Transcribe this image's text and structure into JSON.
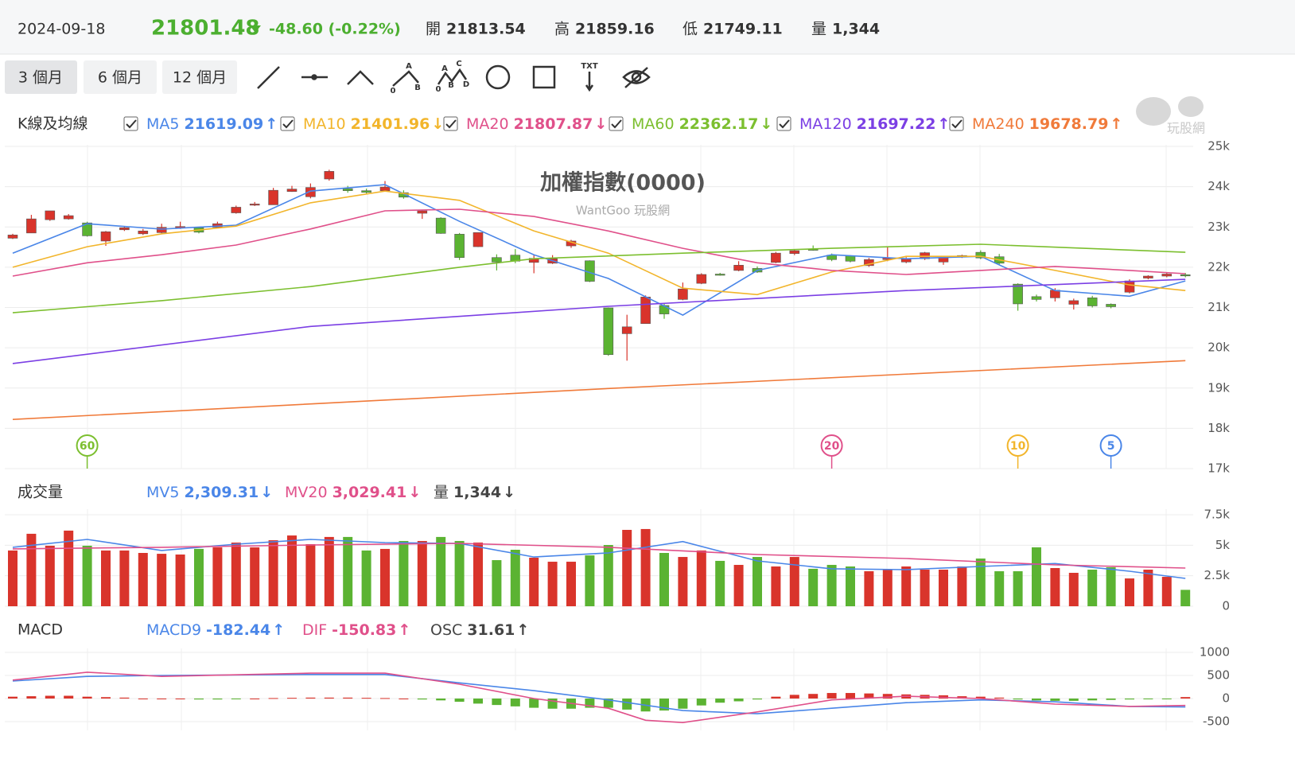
{
  "header": {
    "date": "2024-09-18",
    "price": 21801.48,
    "change": "-48.60 (-0.22%)",
    "open_label": "開",
    "open": 21813.54,
    "high_label": "高",
    "high": 21859.16,
    "low_label": "低",
    "low": 21749.11,
    "volume_label": "量",
    "volume": "1,344"
  },
  "toolbar": {
    "ranges": [
      "3 個月",
      "6 個月",
      "12 個月"
    ],
    "tool_letters": [
      "A",
      "0",
      "B",
      "A",
      "C",
      "0",
      "B",
      "D",
      "TXT"
    ]
  },
  "logo": "玩股網",
  "chart_data": [
    {
      "type": "candlestick",
      "title": "加權指數(0000)",
      "subtitle": "WantGoo 玩股網",
      "panel_label": "K線及均線",
      "color_up": "#d9342b",
      "color_down": "#5bb332",
      "open": [
        22720,
        22850,
        23180,
        23200,
        23100,
        22650,
        22930,
        22830,
        22860,
        22980,
        22980,
        22990,
        23350,
        23540,
        23550,
        23880,
        23750,
        24190,
        23950,
        23900,
        23900,
        23850,
        23340,
        23220,
        22820,
        22510,
        22240,
        22300,
        22120,
        22100,
        22530,
        22160,
        20990,
        20350,
        20600,
        21050,
        21200,
        21600,
        21830,
        21920,
        21970,
        22120,
        22340,
        22450,
        22300,
        22280,
        22040,
        22190,
        22130,
        22210,
        22130,
        22250,
        22370,
        22260,
        21580,
        21270,
        21240,
        21080,
        21240,
        21080,
        21380,
        21730,
        21780,
        21813.54
      ],
      "high": [
        22830,
        23300,
        23400,
        23320,
        23130,
        22900,
        23020,
        22950,
        23080,
        23130,
        23000,
        23130,
        23530,
        23620,
        23970,
        24020,
        24080,
        24420,
        24020,
        23950,
        24140,
        23910,
        23430,
        23240,
        22850,
        22860,
        22320,
        22450,
        22300,
        22300,
        22680,
        22170,
        21000,
        20820,
        21300,
        21100,
        21620,
        21850,
        21860,
        22150,
        22020,
        22380,
        22450,
        22540,
        22340,
        22300,
        22230,
        22500,
        22250,
        22380,
        22260,
        22310,
        22420,
        22330,
        21600,
        21320,
        21480,
        21220,
        21290,
        21100,
        21700,
        21800,
        21860,
        21859.16
      ],
      "low": [
        22700,
        22850,
        23150,
        23180,
        22760,
        22530,
        22900,
        22800,
        22840,
        22950,
        22840,
        22970,
        23330,
        23520,
        23550,
        23870,
        23710,
        24150,
        23850,
        23830,
        23880,
        23700,
        23200,
        22830,
        22180,
        22500,
        21920,
        22100,
        21850,
        22080,
        22480,
        21630,
        19800,
        19680,
        20600,
        20720,
        21180,
        21580,
        21790,
        21900,
        21860,
        22100,
        22300,
        22410,
        22150,
        22120,
        22010,
        22150,
        22100,
        22180,
        22060,
        22230,
        22200,
        22060,
        20920,
        21150,
        21150,
        20950,
        21000,
        20980,
        21350,
        21700,
        21750,
        21749.11
      ],
      "close": [
        22800,
        23200,
        23400,
        23280,
        22780,
        22880,
        22980,
        22900,
        22990,
        23010,
        22870,
        23080,
        23490,
        23570,
        23910,
        23940,
        23980,
        24380,
        23900,
        23860,
        23990,
        23740,
        23400,
        22840,
        22240,
        22860,
        22130,
        22150,
        22220,
        22210,
        22650,
        21650,
        19830,
        20520,
        21260,
        20840,
        21460,
        21820,
        21800,
        22050,
        21880,
        22350,
        22410,
        22430,
        22190,
        22150,
        22190,
        22230,
        22200,
        22360,
        22240,
        22290,
        22230,
        22100,
        21090,
        21200,
        21430,
        21170,
        21040,
        21020,
        21660,
        21780,
        21830,
        21801.48
      ],
      "series": [
        {
          "name": "MA5",
          "value": 21619.09,
          "arrow": "↑",
          "color": "#4a86e8",
          "x": [
            0,
            4,
            8,
            12,
            16,
            20,
            24,
            28,
            32,
            36,
            40,
            44,
            48,
            52,
            56,
            60,
            63
          ],
          "values": [
            22350,
            23080,
            22945,
            23045,
            23890,
            24050,
            23140,
            22310,
            21720,
            20810,
            21920,
            22310,
            22210,
            22270,
            21420,
            21280,
            21660
          ]
        },
        {
          "name": "MA10",
          "value": 21401.96,
          "arrow": "↓",
          "color": "#f2b52b",
          "x": [
            0,
            4,
            8,
            12,
            16,
            20,
            24,
            28,
            32,
            36,
            40,
            44,
            48,
            52,
            56,
            60,
            63
          ],
          "values": [
            22000,
            22510,
            22830,
            23020,
            23600,
            23890,
            23660,
            22900,
            22350,
            21480,
            21320,
            21880,
            22270,
            22270,
            21920,
            21560,
            21420
          ]
        },
        {
          "name": "MA20",
          "value": 21807.87,
          "arrow": "↓",
          "color": "#e0508a",
          "x": [
            0,
            4,
            8,
            12,
            16,
            20,
            24,
            28,
            32,
            36,
            40,
            44,
            48,
            52,
            56,
            60,
            63
          ],
          "values": [
            21780,
            22110,
            22310,
            22550,
            22950,
            23400,
            23440,
            23260,
            22900,
            22470,
            22110,
            21920,
            21820,
            21920,
            22020,
            21920,
            21840
          ]
        },
        {
          "name": "MA60",
          "value": 22362.17,
          "arrow": "↓",
          "color": "#7cbf2f",
          "x": [
            0,
            8,
            16,
            24,
            28,
            36,
            44,
            52,
            63
          ],
          "values": [
            20870,
            21170,
            21520,
            22000,
            22210,
            22350,
            22470,
            22570,
            22370
          ]
        },
        {
          "name": "MA120",
          "value": 21697.22,
          "arrow": "↑",
          "color": "#7b3fe4",
          "x": [
            0,
            16,
            32,
            48,
            63
          ],
          "values": [
            19610,
            20530,
            21030,
            21420,
            21700
          ]
        },
        {
          "name": "MA240",
          "value": 19678.79,
          "arrow": "↑",
          "color": "#f07a3a",
          "x": [
            0,
            32,
            63
          ],
          "values": [
            18220,
            18990,
            19680
          ]
        }
      ],
      "markers": [
        {
          "label": "60",
          "x": 4,
          "color": "#7cbf2f"
        },
        {
          "label": "20",
          "x": 44,
          "color": "#e0508a"
        },
        {
          "label": "10",
          "x": 54,
          "color": "#f2b52b"
        },
        {
          "label": "5",
          "x": 59,
          "color": "#4a86e8"
        }
      ],
      "ylim": [
        17000,
        25000
      ],
      "yticks": [
        {
          "value": 17000,
          "label": "17k"
        },
        {
          "value": 18000,
          "label": "18k"
        },
        {
          "value": 19000,
          "label": "19k"
        },
        {
          "value": 20000,
          "label": "20k"
        },
        {
          "value": 21000,
          "label": "21k"
        },
        {
          "value": 22000,
          "label": "22k"
        },
        {
          "value": 23000,
          "label": "23k"
        },
        {
          "value": 24000,
          "label": "24k"
        },
        {
          "value": 25000,
          "label": "25k"
        }
      ],
      "grid": true
    },
    {
      "type": "volume",
      "panel_label": "成交量",
      "values": [
        4570,
        5940,
        4960,
        6200,
        4960,
        4570,
        4570,
        4370,
        4300,
        4240,
        4700,
        4830,
        5220,
        4830,
        5410,
        5800,
        5090,
        5680,
        5680,
        4570,
        4700,
        5350,
        5350,
        5680,
        5350,
        5220,
        3780,
        4630,
        3980,
        3650,
        3650,
        4170,
        5020,
        6260,
        6330,
        4370,
        4040,
        4570,
        3720,
        3390,
        4040,
        3260,
        4040,
        3070,
        3390,
        3260,
        2870,
        3000,
        3260,
        3000,
        3000,
        3260,
        3910,
        2870,
        2870,
        4830,
        3130,
        2740,
        3000,
        3200,
        2280,
        3000,
        2410,
        1344
      ],
      "series": [
        {
          "name": "MV5",
          "value": 2309.31,
          "value_label": "2,309.31",
          "arrow": "↓",
          "color": "#4a86e8",
          "x": [
            0,
            4,
            8,
            12,
            16,
            20,
            24,
            28,
            32,
            36,
            40,
            44,
            48,
            52,
            56,
            60,
            63
          ],
          "values": [
            4830,
            5480,
            4570,
            5090,
            5480,
            5220,
            5150,
            4040,
            4370,
            5300,
            3720,
            3070,
            3000,
            3260,
            3500,
            2870,
            2280
          ]
        },
        {
          "name": "MV20",
          "value": 3029.41,
          "value_label": "3,029.41",
          "arrow": "↓",
          "color": "#e0508a",
          "x": [
            0,
            8,
            16,
            24,
            32,
            40,
            48,
            56,
            63
          ],
          "values": [
            4700,
            4830,
            5020,
            5150,
            4830,
            4240,
            3910,
            3390,
            3130
          ]
        }
      ],
      "legend_extra": {
        "name": "量",
        "value_label": "1,344",
        "arrow": "↓"
      },
      "ylim": [
        0,
        7500
      ],
      "yticks": [
        0,
        {
          "value": 2500,
          "label": "2.5k"
        },
        {
          "value": 5000,
          "label": "5k"
        },
        {
          "value": 7500,
          "label": "7.5k"
        }
      ],
      "grid": true
    },
    {
      "type": "macd",
      "panel_label": "MACD",
      "values": [
        40,
        50,
        60,
        60,
        40,
        30,
        20,
        0,
        0,
        0,
        -20,
        -20,
        -10,
        0,
        10,
        15,
        20,
        20,
        20,
        15,
        10,
        0,
        -20,
        -40,
        -70,
        -110,
        -140,
        -170,
        -200,
        -220,
        -220,
        -200,
        -200,
        -240,
        -280,
        -260,
        -220,
        -150,
        -90,
        -60,
        -20,
        40,
        80,
        100,
        120,
        120,
        110,
        100,
        90,
        80,
        70,
        50,
        40,
        20,
        -20,
        -40,
        -50,
        -50,
        -40,
        -30,
        -20,
        -10,
        -10,
        31.61
      ],
      "series": [
        {
          "name": "MACD9",
          "value": -182.44,
          "arrow": "↑",
          "color": "#4a86e8",
          "x": [
            0,
            4,
            8,
            16,
            20,
            24,
            28,
            32,
            36,
            40,
            44,
            48,
            52,
            56,
            60,
            63
          ],
          "values": [
            380,
            480,
            500,
            520,
            520,
            340,
            170,
            -30,
            -260,
            -330,
            -210,
            -90,
            -30,
            -70,
            -170,
            -182.44
          ]
        },
        {
          "name": "DIF",
          "value": -150.83,
          "arrow": "↑",
          "color": "#e0508a",
          "x": [
            0,
            4,
            8,
            16,
            20,
            24,
            28,
            32,
            34,
            36,
            40,
            44,
            48,
            52,
            56,
            60,
            63
          ],
          "values": [
            400,
            570,
            480,
            550,
            550,
            310,
            0,
            -210,
            -470,
            -520,
            -290,
            -30,
            50,
            0,
            -120,
            -170,
            -150.83
          ]
        }
      ],
      "legend_extra": {
        "name": "OSC",
        "value": 31.61,
        "arrow": "↑"
      },
      "ylim": [
        -690,
        1090
      ],
      "yticks": [
        -500,
        0,
        500,
        1000
      ],
      "grid": true
    }
  ]
}
